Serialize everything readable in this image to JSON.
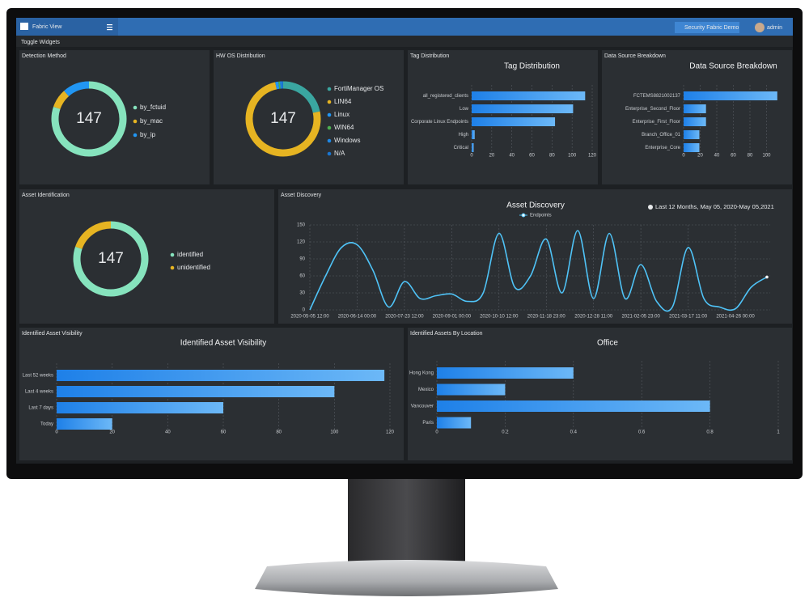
{
  "header": {
    "app": "Fabric View",
    "toggle": "Toggle Widgets",
    "fabric_button": "Security Fabric Demo",
    "user": "admin"
  },
  "widgets": [
    {
      "title": "Detection Method",
      "chart": {
        "type": "donut",
        "total": 147,
        "labels": [
          "by_fctuid",
          "by_mac",
          "by_ip"
        ],
        "values": [
          118,
          12,
          17
        ],
        "colors": [
          "#86e3bd",
          "#e6b422",
          "#2196f3"
        ]
      }
    },
    {
      "title": "HW OS Distribution",
      "chart": {
        "type": "donut",
        "total": 147,
        "labels": [
          "FortiManager OS",
          "LIN64",
          "Linux",
          "WIN64",
          "Windows",
          "N/A"
        ],
        "values": [
          32,
          110,
          2,
          1,
          1,
          1
        ],
        "colors": [
          "#3aa6a0",
          "#e6b422",
          "#2196f3",
          "#4caf50",
          "#1e88e5",
          "#1976d2"
        ]
      }
    },
    {
      "title": "Tag Distribution",
      "chart": {
        "type": "hbar",
        "title": "Tag Distribution",
        "categories": [
          "all_registered_clients",
          "Low",
          "Corporate Linux Endpoints",
          "High",
          "Critical"
        ],
        "values": [
          113,
          101,
          83,
          3,
          2
        ],
        "color": "#42a0f5",
        "xlim": [
          0,
          120
        ],
        "xticks": [
          0,
          20,
          40,
          60,
          80,
          100,
          120
        ]
      }
    },
    {
      "title": "Data Source Breakdown",
      "chart": {
        "type": "hbar",
        "title": "Data Source Breakdown",
        "categories": [
          "FCTEMS8821002137",
          "Enterprise_Second_Floor",
          "Enterprise_First_Floor",
          "Branch_Office_01",
          "Enterprise_Core"
        ],
        "values": [
          113,
          27,
          27,
          19,
          19
        ],
        "color": "#42a0f5",
        "xlim": [
          0,
          120
        ],
        "xticks": [
          0,
          20,
          40,
          60,
          80,
          100
        ]
      }
    },
    {
      "title": "Asset Identification",
      "chart": {
        "type": "donut",
        "total": 147,
        "labels": [
          "identified",
          "unidentified"
        ],
        "values": [
          118,
          29
        ],
        "colors": [
          "#86e3bd",
          "#e6b422"
        ]
      }
    },
    {
      "title": "Asset Discovery",
      "chart": {
        "type": "line",
        "title": "Asset Discovery",
        "subtitle": "Last 12 Months, May 05, 2020-May 05,2021",
        "categories": [
          "2020-05-05 12:00",
          null,
          null,
          "2020-06-14 00:00",
          null,
          null,
          "2020-07-23 12:00",
          null,
          null,
          "2020-09-01 00:00",
          null,
          null,
          "2020-10-10 12:00",
          null,
          null,
          "2020-11-18 23:00",
          null,
          null,
          "2020-12-28 11:00",
          null,
          null,
          "2021-02-05 23:00",
          null,
          null,
          "2021-03-17 11:00",
          null,
          null,
          "2021-04-26 00:00",
          null,
          null
        ],
        "series": [
          {
            "name": "Endpoints",
            "color": "#4fc3f7",
            "values": [
              0,
              60,
              110,
              115,
              70,
              5,
              50,
              20,
              25,
              28,
              15,
              30,
              135,
              40,
              60,
              125,
              30,
              140,
              20,
              135,
              20,
              80,
              15,
              5,
              110,
              20,
              5,
              2,
              40,
              58
            ]
          }
        ],
        "ylim": [
          0,
          150
        ],
        "yticks": [
          0,
          30,
          60,
          90,
          120,
          150
        ]
      }
    },
    {
      "title": "Identified Asset Visibility",
      "chart": {
        "type": "hbar",
        "title": "Identified Asset Visibility",
        "categories": [
          "Last 52 weeks",
          "Last 4 weeks",
          "Last 7 days",
          "Today"
        ],
        "values": [
          118,
          100,
          60,
          20
        ],
        "color": "#42a0f5",
        "xlim": [
          0,
          120
        ],
        "xticks": [
          0,
          20,
          40,
          60,
          80,
          100,
          120
        ]
      }
    },
    {
      "title": "Identified Assets By Location",
      "chart": {
        "type": "hbar",
        "title": "Office",
        "categories": [
          "Hong Kong",
          "Mexico",
          "Vancouver",
          "Paris"
        ],
        "values": [
          0.4,
          0.2,
          0.8,
          0.1
        ],
        "color": "#42a0f5",
        "xlim": [
          0,
          1
        ],
        "xticks": [
          0,
          0.2,
          0.4,
          0.6,
          0.8,
          1
        ]
      }
    }
  ]
}
